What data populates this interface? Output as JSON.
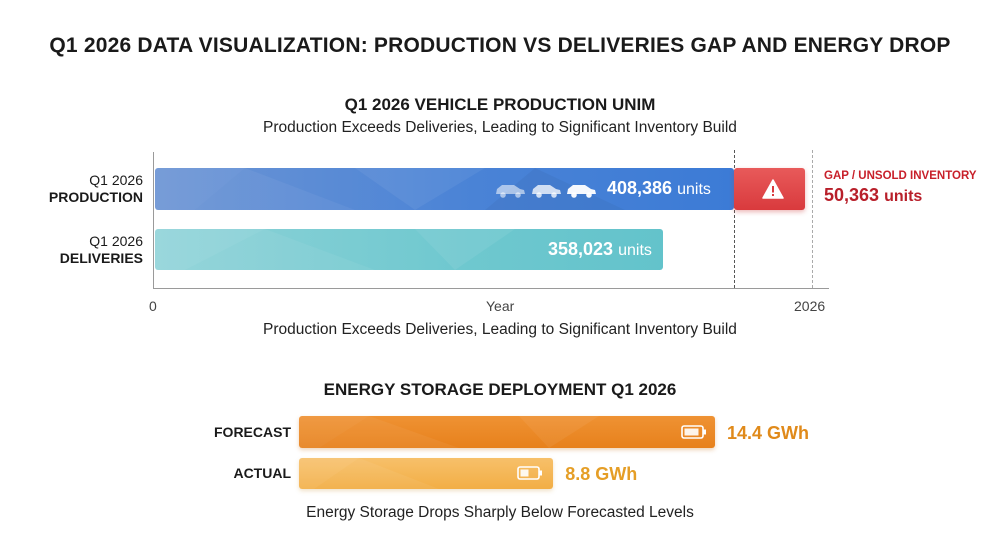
{
  "main_title": "Q1 2026 DATA VISUALIZATION: PRODUCTION VS DELIVERIES GAP AND ENERGY DROP",
  "vehicle": {
    "title": "Q1 2026 VEHICLE PRODUCTION UNIM",
    "subtitle": "Production Exceeds Deliveries, Leading to Significant Inventory Build",
    "caption": "Production Exceeds Deliveries, Leading to Significant Inventory Build",
    "production_label_line1": "Q1 2026",
    "production_label_line2": "PRODUCTION",
    "deliveries_label_line1": "Q1 2026",
    "deliveries_label_line2": "DELIVERIES",
    "production_value": "408,386",
    "deliveries_value": "358,023",
    "unit": "units",
    "gap_title": "GAP / UNSOLD INVENTORY",
    "gap_value": "50,363",
    "x_axis_label": "Year",
    "x_tick_start": "0",
    "x_tick_end": "2026",
    "production_icons": [
      "car-icon",
      "car-icon",
      "car-icon"
    ],
    "gap_icon": "warning-icon"
  },
  "energy": {
    "title": "ENERGY STORAGE DEPLOYMENT Q1 2026",
    "forecast_label": "FORECAST",
    "actual_label": "ACTUAL",
    "forecast_value": "14.4 GWh",
    "actual_value": "8.8 GWh",
    "caption": "Energy Storage Drops Sharply Below Forecasted Levels",
    "icon": "battery-icon"
  },
  "chart_data": [
    {
      "type": "bar",
      "orientation": "horizontal",
      "title": "Q1 2026 VEHICLE PRODUCTION UNIM",
      "subtitle": "Production Exceeds Deliveries, Leading to Significant Inventory Build",
      "categories": [
        "Q1 2026 PRODUCTION",
        "Q1 2026 DELIVERIES"
      ],
      "values": [
        408386,
        358023
      ],
      "annotations": [
        {
          "label": "GAP / UNSOLD INVENTORY",
          "value": 50363
        }
      ],
      "xlabel": "Year",
      "x_ticks": [
        "0",
        "2026"
      ],
      "grid": false
    },
    {
      "type": "bar",
      "orientation": "horizontal",
      "title": "ENERGY STORAGE DEPLOYMENT Q1 2026",
      "categories": [
        "FORECAST",
        "ACTUAL"
      ],
      "values": [
        14.4,
        8.8
      ],
      "unit": "GWh",
      "grid": false
    }
  ],
  "colors": {
    "production": "#4a83d6",
    "deliveries": "#6fc8cf",
    "gap": "#de4545",
    "gap_text": "#c8202a",
    "forecast": "#e7811c",
    "actual": "#f2ae45",
    "forecast_text": "#e08a1a",
    "actual_text": "#e59e26"
  }
}
